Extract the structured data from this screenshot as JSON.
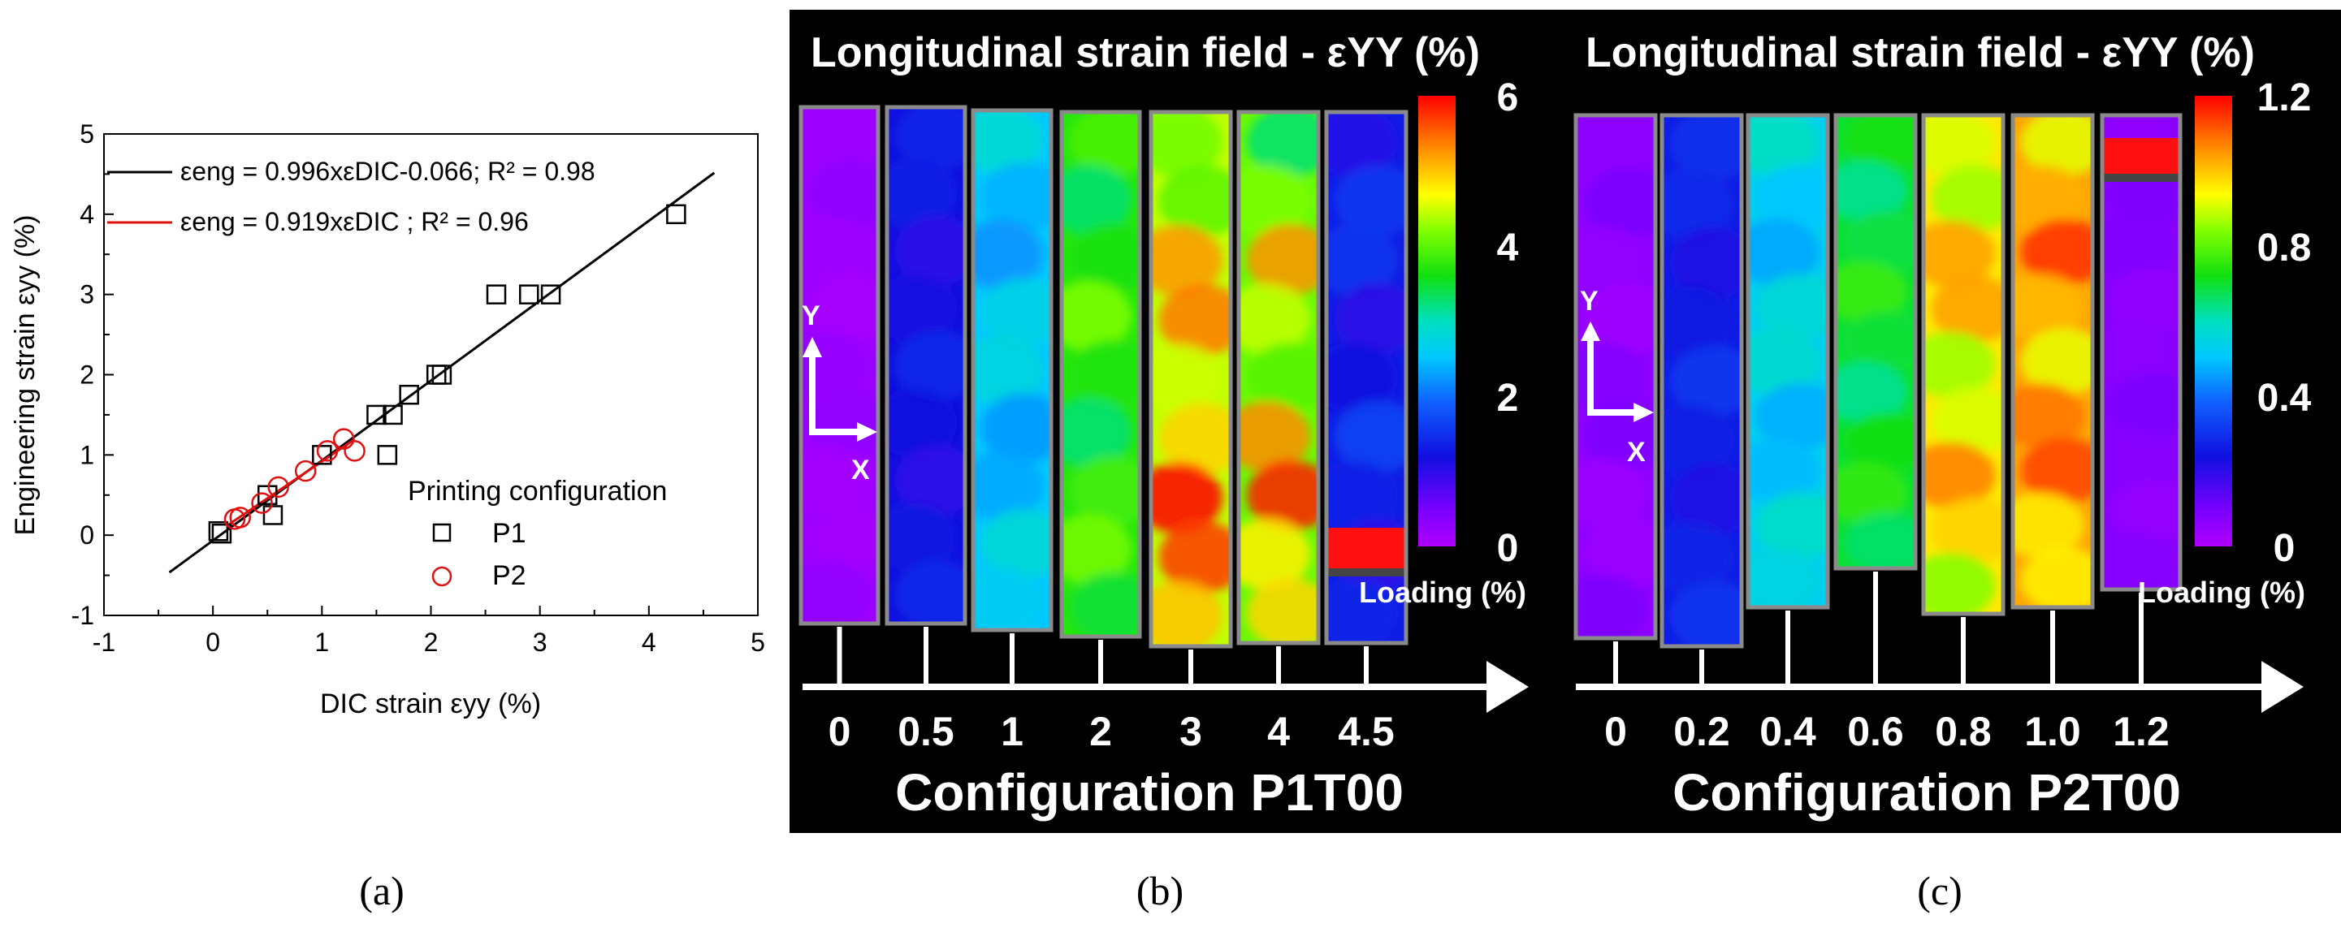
{
  "panel_labels": [
    "(a)",
    "(b)",
    "(c)"
  ],
  "chart_data": [
    {
      "type": "scatter",
      "panel": "a",
      "xlabel": "DIC strain εyy (%)",
      "ylabel": "Engineering strain εyy (%)",
      "xlim": [
        -1,
        5
      ],
      "ylim": [
        -1,
        5
      ],
      "xticks": [
        -1,
        0,
        1,
        2,
        3,
        4,
        5
      ],
      "yticks": [
        -1,
        0,
        1,
        2,
        3,
        4,
        5
      ],
      "legend_title": "Printing configuration",
      "series": [
        {
          "name": "P1",
          "marker": "square",
          "color": "#000000",
          "points": [
            [
              0.05,
              0.05
            ],
            [
              0.08,
              0.02
            ],
            [
              0.5,
              0.5
            ],
            [
              0.55,
              0.25
            ],
            [
              1.0,
              1.0
            ],
            [
              1.5,
              1.5
            ],
            [
              1.6,
              1.0
            ],
            [
              1.65,
              1.5
            ],
            [
              1.8,
              1.75
            ],
            [
              2.05,
              2.0
            ],
            [
              2.1,
              2.0
            ],
            [
              2.6,
              3.0
            ],
            [
              2.9,
              3.0
            ],
            [
              3.1,
              3.0
            ],
            [
              4.25,
              4.0
            ]
          ]
        },
        {
          "name": "P2",
          "marker": "circle",
          "color": "#e01010",
          "points": [
            [
              0.2,
              0.2
            ],
            [
              0.25,
              0.22
            ],
            [
              0.45,
              0.4
            ],
            [
              0.6,
              0.6
            ],
            [
              0.85,
              0.8
            ],
            [
              1.05,
              1.05
            ],
            [
              1.2,
              1.2
            ],
            [
              1.3,
              1.05
            ]
          ]
        }
      ],
      "fits": [
        {
          "label": "εeng = 0.996xεDIC-0.066;  R² = 0.98",
          "color": "#000000",
          "slope": 0.996,
          "intercept": -0.066,
          "x_range": [
            -0.4,
            4.6
          ]
        },
        {
          "label": "εeng = 0.919xεDIC ; R² = 0.96",
          "color": "#e01010",
          "slope": 0.919,
          "intercept": 0.0,
          "x_range": [
            0.15,
            1.3
          ]
        }
      ]
    },
    {
      "type": "heatmap",
      "panel": "b",
      "title": "Longitudinal strain field - εYY  (%)",
      "axis_label": "Configuration P1T00",
      "loading_label": "Loading (%)",
      "loading_values": [
        "0",
        "0.5",
        "1",
        "2",
        "3",
        "4",
        "4.5"
      ],
      "colorbar_ticks": [
        "6",
        "4",
        "2",
        "0"
      ],
      "colorbar_range": [
        0,
        6
      ],
      "axes_letters": [
        "Y",
        "X"
      ]
    },
    {
      "type": "heatmap",
      "panel": "c",
      "title": "Longitudinal strain field - εYY  (%)",
      "axis_label": "Configuration P2T00",
      "loading_label": "Loading (%)",
      "loading_values": [
        "0",
        "0.2",
        "0.4",
        "0.6",
        "0.8",
        "1.0",
        "1.2"
      ],
      "colorbar_ticks": [
        "1.2",
        "0.8",
        "0.4",
        "0"
      ],
      "colorbar_range": [
        0,
        1.2
      ],
      "axes_letters": [
        "Y",
        "X"
      ]
    }
  ]
}
